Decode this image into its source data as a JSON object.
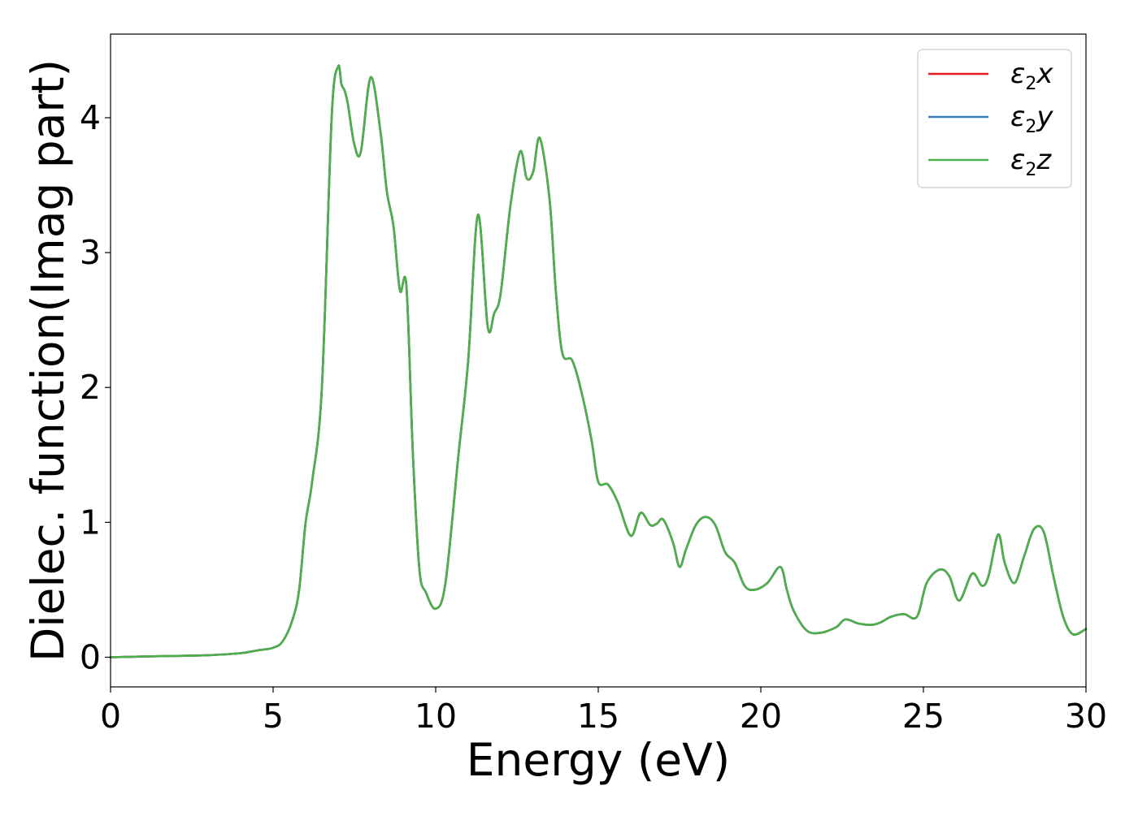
{
  "chart_data": {
    "type": "line",
    "xlabel": "Energy (eV)",
    "ylabel": "Dielec. function(Imag part)",
    "xlim": [
      0,
      30
    ],
    "ylim": [
      -0.22,
      4.62
    ],
    "xticks": [
      "0",
      "5",
      "10",
      "15",
      "20",
      "25",
      "30"
    ],
    "yticks": [
      "0",
      "1",
      "2",
      "3",
      "4"
    ],
    "grid": false,
    "legend_position": "top-right",
    "x": [
      0,
      1,
      2,
      3,
      4,
      4.5,
      5,
      5.3,
      5.6,
      5.8,
      6.0,
      6.2,
      6.5,
      6.8,
      7.0,
      7.1,
      7.2,
      7.3,
      7.5,
      7.7,
      8.0,
      8.3,
      8.5,
      8.7,
      8.9,
      9.1,
      9.3,
      9.5,
      9.7,
      10.0,
      10.3,
      10.7,
      11.0,
      11.3,
      11.6,
      11.8,
      12.0,
      12.3,
      12.6,
      12.8,
      13.0,
      13.2,
      13.5,
      13.7,
      13.9,
      14.2,
      14.5,
      14.8,
      15.0,
      15.3,
      15.6,
      16.0,
      16.3,
      16.6,
      16.8,
      17.0,
      17.3,
      17.5,
      17.7,
      18.0,
      18.3,
      18.6,
      18.9,
      19.2,
      19.5,
      19.8,
      20.2,
      20.6,
      20.8,
      21.0,
      21.4,
      21.8,
      22.3,
      22.6,
      23.0,
      23.4,
      23.7,
      24.0,
      24.4,
      24.8,
      25.1,
      25.5,
      25.8,
      26.1,
      26.5,
      26.8,
      27.0,
      27.3,
      27.5,
      27.8,
      28.1,
      28.4,
      28.7,
      29.0,
      29.3,
      29.6,
      30.0
    ],
    "series": [
      {
        "name": "ε₂x",
        "label_base": "ε",
        "label_sub": "2",
        "label_suffix": "x",
        "color": "#e41a1c",
        "values": [
          0.0,
          0.005,
          0.01,
          0.015,
          0.03,
          0.05,
          0.07,
          0.12,
          0.28,
          0.5,
          1.0,
          1.3,
          2.0,
          4.0,
          4.38,
          4.25,
          4.2,
          4.1,
          3.8,
          3.75,
          4.3,
          3.9,
          3.45,
          3.2,
          2.72,
          2.75,
          1.5,
          0.65,
          0.48,
          0.36,
          0.55,
          1.5,
          2.2,
          3.28,
          2.45,
          2.55,
          2.7,
          3.35,
          3.75,
          3.55,
          3.6,
          3.85,
          3.4,
          2.7,
          2.25,
          2.2,
          1.95,
          1.6,
          1.3,
          1.28,
          1.15,
          0.9,
          1.07,
          0.98,
          0.99,
          1.02,
          0.85,
          0.67,
          0.8,
          0.98,
          1.04,
          0.98,
          0.78,
          0.7,
          0.53,
          0.5,
          0.55,
          0.67,
          0.5,
          0.35,
          0.2,
          0.18,
          0.22,
          0.28,
          0.25,
          0.24,
          0.26,
          0.3,
          0.32,
          0.3,
          0.55,
          0.65,
          0.6,
          0.42,
          0.62,
          0.53,
          0.6,
          0.91,
          0.7,
          0.55,
          0.75,
          0.95,
          0.93,
          0.6,
          0.3,
          0.17,
          0.21
        ]
      },
      {
        "name": "ε₂y",
        "label_base": "ε",
        "label_sub": "2",
        "label_suffix": "y",
        "color": "#377eb8",
        "values": [
          0.0,
          0.005,
          0.01,
          0.015,
          0.03,
          0.05,
          0.07,
          0.12,
          0.28,
          0.5,
          1.0,
          1.3,
          2.0,
          4.0,
          4.38,
          4.25,
          4.2,
          4.1,
          3.8,
          3.75,
          4.3,
          3.9,
          3.45,
          3.2,
          2.72,
          2.75,
          1.5,
          0.65,
          0.48,
          0.36,
          0.55,
          1.5,
          2.2,
          3.28,
          2.45,
          2.55,
          2.7,
          3.35,
          3.75,
          3.55,
          3.6,
          3.85,
          3.4,
          2.7,
          2.25,
          2.2,
          1.95,
          1.6,
          1.3,
          1.28,
          1.15,
          0.9,
          1.07,
          0.98,
          0.99,
          1.02,
          0.85,
          0.67,
          0.8,
          0.98,
          1.04,
          0.98,
          0.78,
          0.7,
          0.53,
          0.5,
          0.55,
          0.67,
          0.5,
          0.35,
          0.2,
          0.18,
          0.22,
          0.28,
          0.25,
          0.24,
          0.26,
          0.3,
          0.32,
          0.3,
          0.55,
          0.65,
          0.6,
          0.42,
          0.62,
          0.53,
          0.6,
          0.91,
          0.7,
          0.55,
          0.75,
          0.95,
          0.93,
          0.6,
          0.3,
          0.17,
          0.21
        ]
      },
      {
        "name": "ε₂z",
        "label_base": "ε",
        "label_sub": "2",
        "label_suffix": "z",
        "color": "#4daf4a",
        "values": [
          0.0,
          0.005,
          0.01,
          0.015,
          0.03,
          0.05,
          0.07,
          0.12,
          0.28,
          0.5,
          1.0,
          1.3,
          2.0,
          4.0,
          4.38,
          4.25,
          4.2,
          4.1,
          3.8,
          3.75,
          4.3,
          3.9,
          3.45,
          3.2,
          2.72,
          2.75,
          1.5,
          0.65,
          0.48,
          0.36,
          0.55,
          1.5,
          2.2,
          3.28,
          2.45,
          2.55,
          2.7,
          3.35,
          3.75,
          3.55,
          3.6,
          3.85,
          3.4,
          2.7,
          2.25,
          2.2,
          1.95,
          1.6,
          1.3,
          1.28,
          1.15,
          0.9,
          1.07,
          0.98,
          0.99,
          1.02,
          0.85,
          0.67,
          0.8,
          0.98,
          1.04,
          0.98,
          0.78,
          0.7,
          0.53,
          0.5,
          0.55,
          0.67,
          0.5,
          0.35,
          0.2,
          0.18,
          0.22,
          0.28,
          0.25,
          0.24,
          0.26,
          0.3,
          0.32,
          0.3,
          0.55,
          0.65,
          0.6,
          0.42,
          0.62,
          0.53,
          0.6,
          0.91,
          0.7,
          0.55,
          0.75,
          0.95,
          0.93,
          0.6,
          0.3,
          0.17,
          0.21
        ]
      }
    ]
  }
}
